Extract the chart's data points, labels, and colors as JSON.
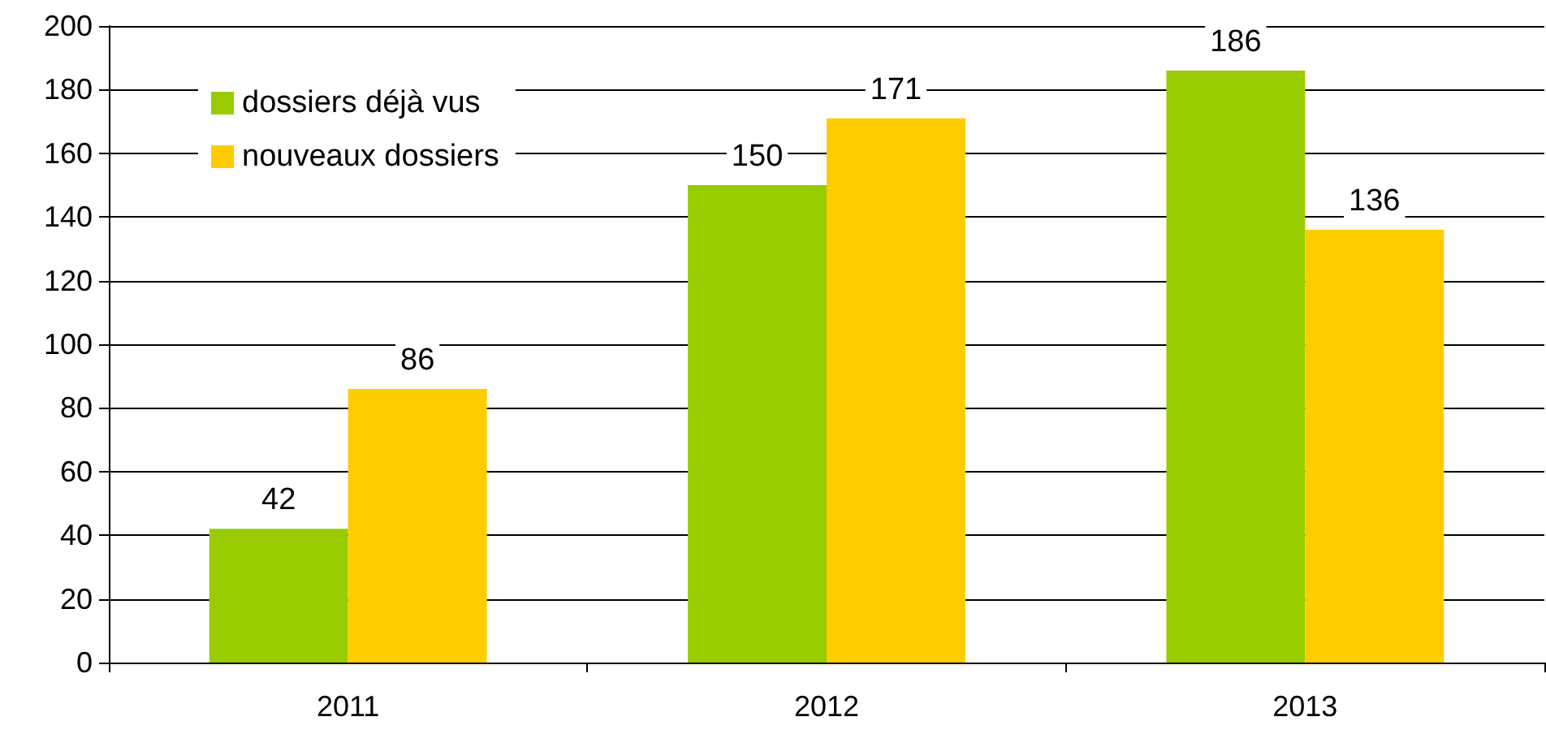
{
  "chart_data": {
    "type": "bar",
    "categories": [
      "2011",
      "2012",
      "2013"
    ],
    "series": [
      {
        "name": "dossiers déjà vus",
        "color": "#99cc00",
        "values": [
          42,
          150,
          186
        ]
      },
      {
        "name": "nouveaux dossiers",
        "color": "#ffcc00",
        "values": [
          86,
          171,
          136
        ]
      }
    ],
    "ylim": [
      0,
      200
    ],
    "yticks": [
      0,
      20,
      40,
      60,
      80,
      100,
      120,
      140,
      160,
      180,
      200
    ],
    "grid": "y",
    "legend": "top left",
    "data_labels": true
  }
}
